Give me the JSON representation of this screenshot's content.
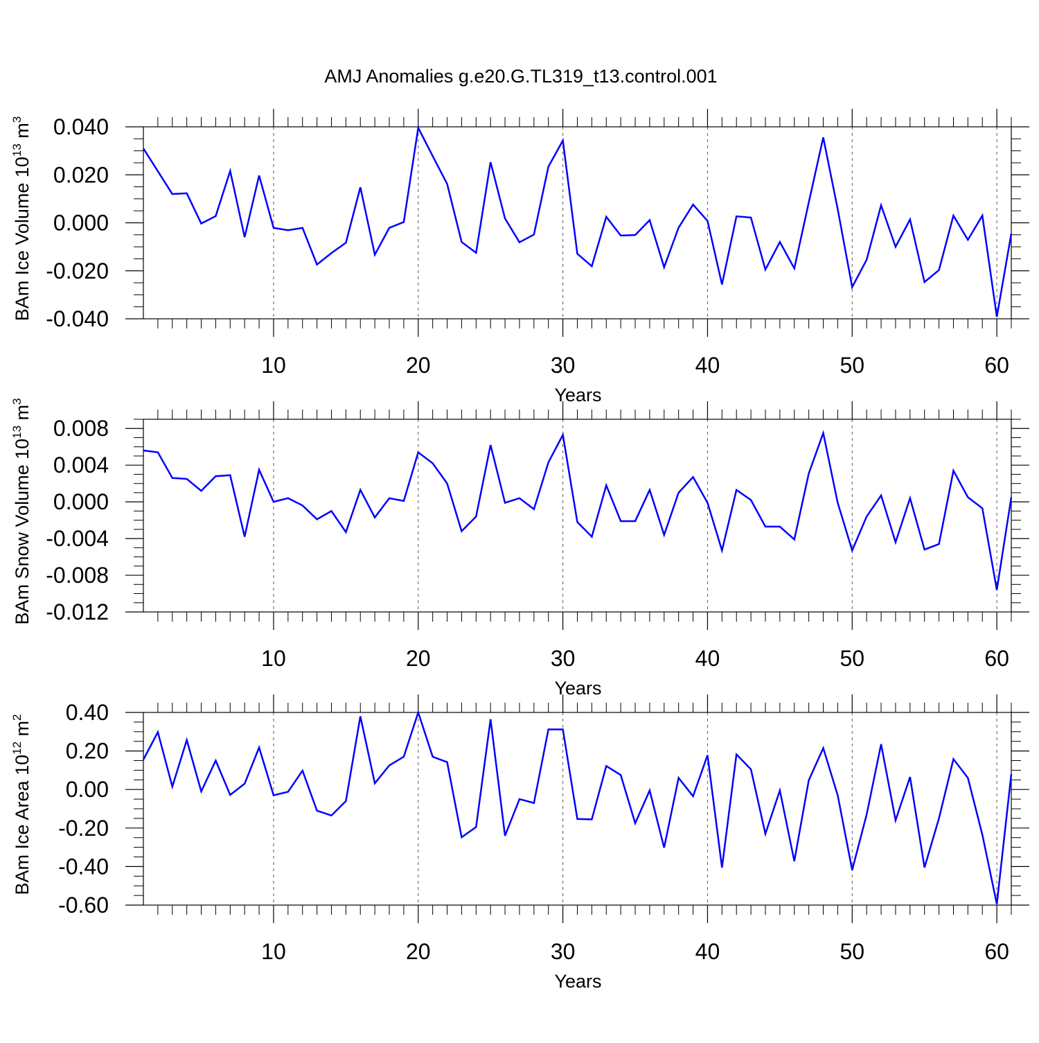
{
  "title": "AMJ Anomalies g.e20.G.TL319_t13.control.001",
  "line_color": "#0000ff",
  "chart_data": [
    {
      "type": "line",
      "xlabel": "Years",
      "ylabel": {
        "main": "BAm Ice Volume 10",
        "exp": "13",
        "unit": " m",
        "unit_exp": "3"
      },
      "xlim": [
        1,
        61
      ],
      "ylim": [
        -0.04,
        0.04
      ],
      "xticks": [
        10,
        20,
        30,
        40,
        50,
        60
      ],
      "xtick_labels": [
        "10",
        "20",
        "30",
        "40",
        "50",
        "60"
      ],
      "yticks": [
        0.04,
        0.02,
        0.0,
        -0.02,
        -0.04
      ],
      "ytick_labels": [
        "0.040",
        "0.020",
        "0.000",
        "-0.020",
        "-0.040"
      ],
      "x": [
        1,
        2,
        3,
        4,
        5,
        6,
        7,
        8,
        9,
        10,
        11,
        12,
        13,
        14,
        15,
        16,
        17,
        18,
        19,
        20,
        21,
        22,
        23,
        24,
        25,
        26,
        27,
        28,
        29,
        30,
        31,
        32,
        33,
        34,
        35,
        36,
        37,
        38,
        39,
        40,
        41,
        42,
        43,
        44,
        45,
        46,
        47,
        48,
        49,
        50,
        51,
        52,
        53,
        54,
        55,
        56,
        57,
        58,
        59,
        60,
        61
      ],
      "series": [
        {
          "name": "BAm Ice Volume",
          "values": [
            0.031,
            0.0215,
            0.012,
            0.0123,
            -0.0003,
            0.0028,
            0.0216,
            -0.006,
            0.0197,
            -0.0021,
            -0.0031,
            -0.0021,
            -0.0174,
            -0.0126,
            -0.0083,
            0.0148,
            -0.0133,
            -0.0021,
            0.0003,
            0.0396,
            0.0278,
            0.0162,
            -0.008,
            -0.0125,
            0.0253,
            0.0018,
            -0.0081,
            -0.0049,
            0.0234,
            0.0343,
            -0.0129,
            -0.0181,
            0.0025,
            -0.0053,
            -0.0051,
            0.0011,
            -0.0185,
            -0.002,
            0.0076,
            0.0008,
            -0.0257,
            0.0027,
            0.0022,
            -0.0195,
            -0.008,
            -0.019,
            0.0085,
            0.0356,
            0.0057,
            -0.0268,
            -0.0154,
            0.0073,
            -0.01,
            0.0014,
            -0.0247,
            -0.0197,
            0.003,
            -0.0071,
            0.003,
            -0.0392,
            -0.0045
          ]
        }
      ]
    },
    {
      "type": "line",
      "xlabel": "Years",
      "ylabel": {
        "main": "BAm Snow Volume 10",
        "exp": "13",
        "unit": " m",
        "unit_exp": "3"
      },
      "xlim": [
        1,
        61
      ],
      "ylim": [
        -0.012,
        0.009
      ],
      "xticks": [
        10,
        20,
        30,
        40,
        50,
        60
      ],
      "xtick_labels": [
        "10",
        "20",
        "30",
        "40",
        "50",
        "60"
      ],
      "yticks": [
        0.008,
        0.004,
        0.0,
        -0.004,
        -0.008,
        -0.012
      ],
      "ytick_labels": [
        "0.008",
        "0.004",
        "0.000",
        "-0.004",
        "-0.008",
        "-0.012"
      ],
      "x": [
        1,
        2,
        3,
        4,
        5,
        6,
        7,
        8,
        9,
        10,
        11,
        12,
        13,
        14,
        15,
        16,
        17,
        18,
        19,
        20,
        21,
        22,
        23,
        24,
        25,
        26,
        27,
        28,
        29,
        30,
        31,
        32,
        33,
        34,
        35,
        36,
        37,
        38,
        39,
        40,
        41,
        42,
        43,
        44,
        45,
        46,
        47,
        48,
        49,
        50,
        51,
        52,
        53,
        54,
        55,
        56,
        57,
        58,
        59,
        60,
        61
      ],
      "series": [
        {
          "name": "BAm Snow Volume",
          "values": [
            0.0056,
            0.0054,
            0.0026,
            0.0025,
            0.0012,
            0.0028,
            0.0029,
            -0.0038,
            0.0035,
            0.0,
            0.0004,
            -0.0004,
            -0.0019,
            -0.001,
            -0.0033,
            0.0013,
            -0.0017,
            0.0004,
            0.0001,
            0.0054,
            0.0042,
            0.002,
            -0.0032,
            -0.0016,
            0.0062,
            -0.0001,
            0.0004,
            -0.0008,
            0.0043,
            0.0073,
            -0.0022,
            -0.0038,
            0.0018,
            -0.0021,
            -0.0021,
            0.0013,
            -0.0036,
            0.001,
            0.0027,
            -0.0001,
            -0.0053,
            0.0013,
            0.0002,
            -0.0027,
            -0.0027,
            -0.0041,
            0.0031,
            0.0075,
            -0.0001,
            -0.0053,
            -0.0016,
            0.0007,
            -0.0044,
            0.0004,
            -0.0052,
            -0.0046,
            0.0034,
            0.0005,
            -0.0007,
            -0.0096,
            0.0005
          ]
        }
      ]
    },
    {
      "type": "line",
      "xlabel": "Years",
      "ylabel": {
        "main": "BAm Ice Area 10",
        "exp": "12",
        "unit": " m",
        "unit_exp": "2"
      },
      "xlim": [
        1,
        61
      ],
      "ylim": [
        -0.6,
        0.4
      ],
      "xticks": [
        10,
        20,
        30,
        40,
        50,
        60
      ],
      "xtick_labels": [
        "10",
        "20",
        "30",
        "40",
        "50",
        "60"
      ],
      "yticks": [
        0.4,
        0.2,
        0.0,
        -0.2,
        -0.4,
        -0.6
      ],
      "ytick_labels": [
        "0.40",
        "0.20",
        "0.00",
        "-0.20",
        "-0.40",
        "-0.60"
      ],
      "x": [
        1,
        2,
        3,
        4,
        5,
        6,
        7,
        8,
        9,
        10,
        11,
        12,
        13,
        14,
        15,
        16,
        17,
        18,
        19,
        20,
        21,
        22,
        23,
        24,
        25,
        26,
        27,
        28,
        29,
        30,
        31,
        32,
        33,
        34,
        35,
        36,
        37,
        38,
        39,
        40,
        41,
        42,
        43,
        44,
        45,
        46,
        47,
        48,
        49,
        50,
        51,
        52,
        53,
        54,
        55,
        56,
        57,
        58,
        59,
        60,
        61
      ],
      "series": [
        {
          "name": "BAm Ice Area",
          "values": [
            0.155,
            0.298,
            0.015,
            0.257,
            -0.01,
            0.15,
            -0.028,
            0.03,
            0.218,
            -0.03,
            -0.012,
            0.098,
            -0.11,
            -0.135,
            -0.06,
            0.38,
            0.032,
            0.125,
            0.17,
            0.4,
            0.17,
            0.142,
            -0.248,
            -0.195,
            0.365,
            -0.24,
            -0.05,
            -0.07,
            0.312,
            0.312,
            -0.153,
            -0.155,
            0.122,
            0.075,
            -0.175,
            -0.005,
            -0.302,
            0.06,
            -0.035,
            0.178,
            -0.405,
            0.182,
            0.105,
            -0.23,
            -0.005,
            -0.372,
            0.048,
            0.215,
            -0.03,
            -0.418,
            -0.13,
            0.235,
            -0.16,
            0.065,
            -0.405,
            -0.15,
            0.158,
            0.06,
            -0.235,
            -0.595,
            0.08
          ]
        }
      ]
    }
  ]
}
